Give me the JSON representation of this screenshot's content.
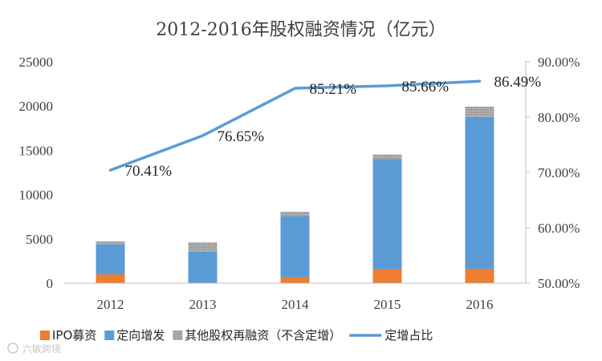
{
  "chart_data": {
    "type": "bar",
    "title": "2012-2016年股权融资情况（亿元）",
    "categories": [
      "2012",
      "2013",
      "2014",
      "2015",
      "2016"
    ],
    "series": [
      {
        "name": "IPO募资",
        "kind": "bar-stacked",
        "axis": "left",
        "color": "#ED7D31",
        "values": [
          1000,
          0,
          670,
          1580,
          1630
        ]
      },
      {
        "name": "定向增发",
        "kind": "bar-stacked",
        "axis": "left",
        "color": "#5B9BD5",
        "values": [
          3400,
          3550,
          6900,
          12450,
          17150
        ]
      },
      {
        "name": "其他股权再融资（不含定增）",
        "kind": "bar-stacked",
        "axis": "left",
        "color": "#A5A5A5",
        "values": [
          320,
          1050,
          500,
          500,
          1150
        ]
      },
      {
        "name": "定增占比",
        "kind": "line",
        "axis": "right",
        "color": "#5B9BD5",
        "values": [
          70.41,
          76.65,
          85.21,
          85.66,
          86.49
        ]
      }
    ],
    "line_labels": [
      "70.41%",
      "76.65%",
      "85.21%",
      "85.66%",
      "86.49%"
    ],
    "y_left": {
      "min": 0,
      "max": 25000,
      "ticks": [
        "0",
        "5000",
        "10000",
        "15000",
        "20000",
        "25000"
      ]
    },
    "y_right": {
      "min": 50,
      "max": 90,
      "ticks": [
        "50.00%",
        "60.00%",
        "70.00%",
        "80.00%",
        "90.00%"
      ]
    },
    "legend_position": "bottom"
  },
  "watermark": "六敏跨境"
}
